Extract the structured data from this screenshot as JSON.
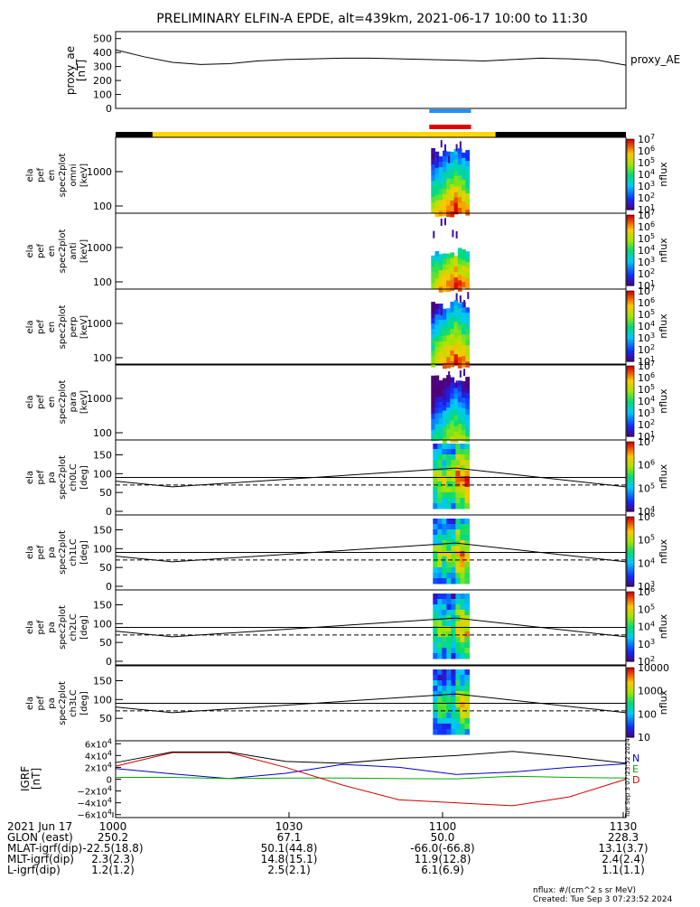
{
  "title": "PRELIMINARY ELFIN-A EPDE, alt=439km, 2021-06-17 10:00 to 11:30",
  "colors": {
    "sun_bar": "#ffd700",
    "shadow_bar": "#000000",
    "sci_bar_blue": "#1e90ff",
    "sci_bar_red": "#e00000",
    "igrf_N": "#0000c8",
    "igrf_E": "#00aa00",
    "igrf_D": "#d00000",
    "igrf_total": "#000000"
  },
  "ae_panel": {
    "ylabel": [
      "proxy_ae",
      "[nT]"
    ],
    "yticks": [
      "500",
      "400",
      "300",
      "200",
      "100",
      "0"
    ],
    "legend": "proxy_AE"
  },
  "spec_panels": [
    {
      "ylabel": [
        "ela",
        "pef",
        "en",
        "spec2plot",
        "omni",
        "[keV]"
      ],
      "yticks": [
        "1000",
        "100"
      ],
      "cbar_ticks": [
        "10^7",
        "10^6",
        "10^5",
        "10^4",
        "10^3",
        "10^2",
        "10^1"
      ],
      "zlabel": "nflux"
    },
    {
      "ylabel": [
        "ela",
        "pef",
        "en",
        "spec2plot",
        "anti",
        "[keV]"
      ],
      "yticks": [
        "1000",
        "100"
      ],
      "cbar_ticks": [
        "10^7",
        "10^6",
        "10^5",
        "10^4",
        "10^3",
        "10^2",
        "10^1"
      ],
      "zlabel": "nflux"
    },
    {
      "ylabel": [
        "ela",
        "pef",
        "en",
        "spec2plot",
        "perp",
        "[keV]"
      ],
      "yticks": [
        "1000",
        "100"
      ],
      "cbar_ticks": [
        "10^7",
        "10^6",
        "10^5",
        "10^4",
        "10^3",
        "10^2",
        "10^1"
      ],
      "zlabel": "nflux"
    },
    {
      "ylabel": [
        "ela",
        "pef",
        "en",
        "spec2plot",
        "para",
        "[keV]"
      ],
      "yticks": [
        "1000",
        "100"
      ],
      "cbar_ticks": [
        "10^7",
        "10^6",
        "10^5",
        "10^4",
        "10^3",
        "10^2",
        "10^1"
      ],
      "zlabel": "nflux"
    }
  ],
  "pa_panels": [
    {
      "ylabel": [
        "ela",
        "pef",
        "pa",
        "spec2plot",
        "ch0LC",
        "[deg]"
      ],
      "yticks": [
        "150",
        "100",
        "50",
        "0"
      ],
      "cbar_ticks": [
        "10^7",
        "10^6",
        "10^5",
        "10^4"
      ],
      "zlabel": "nflux"
    },
    {
      "ylabel": [
        "ela",
        "pef",
        "pa",
        "spec2plot",
        "ch1LC",
        "[deg]"
      ],
      "yticks": [
        "150",
        "100",
        "50",
        "0"
      ],
      "cbar_ticks": [
        "10^6",
        "10^5",
        "10^4",
        "10^3"
      ],
      "zlabel": "nflux"
    },
    {
      "ylabel": [
        "ela",
        "pef",
        "pa",
        "spec2plot",
        "ch2LC",
        "[deg]"
      ],
      "yticks": [
        "150",
        "100",
        "50",
        "0"
      ],
      "cbar_ticks": [
        "10^6",
        "10^5",
        "10^4",
        "10^3",
        "10^2"
      ],
      "zlabel": "nflux"
    },
    {
      "ylabel": [
        "ela",
        "pef",
        "pa",
        "spec2plot",
        "ch3LC",
        "[deg]"
      ],
      "yticks": [
        "150",
        "100",
        "50"
      ],
      "cbar_ticks": [
        "10000",
        "1000",
        "100",
        "10"
      ],
      "zlabel": "nflux"
    }
  ],
  "igrf_panel": {
    "ylabel": [
      "IGRF",
      "[nT]"
    ],
    "yticks": [
      "6x10^4",
      "4x10^4",
      "2x10^4",
      "0",
      "−2x10^4",
      "−4x10^4",
      "−6x10^4"
    ],
    "legend": [
      "N",
      "E",
      "D"
    ],
    "side_text": "Tue Sep  3 07:23:52 2024"
  },
  "footer": {
    "row_labels": [
      "2021 Jun 17",
      "GLON (east)",
      "MLAT-igrf(dip)",
      "MLT-igrf(dip)",
      "L-igrf(dip)"
    ],
    "columns": [
      {
        "time": "1000",
        "values": [
          "250.2",
          "-22.5(18.8)",
          "2.3(2.3)",
          "1.2(1.2)"
        ]
      },
      {
        "time": "1030",
        "values": [
          "67.1",
          "50.1(44.8)",
          "14.8(15.1)",
          "2.5(2.1)"
        ]
      },
      {
        "time": "1100",
        "values": [
          "50.0",
          "-66.0(-66.8)",
          "11.9(12.8)",
          "6.1(6.9)"
        ]
      },
      {
        "time": "1130",
        "values": [
          "228.3",
          "13.1(3.7)",
          "2.4(2.4)",
          "1.1(1.1)"
        ]
      }
    ],
    "units_note": "nflux: #/(cm^2 s sr MeV)",
    "created": "Created: Tue Sep  3 07:23:52 2024"
  },
  "chart_data": {
    "type": "line",
    "x_range": [
      "10:00",
      "11:30"
    ],
    "ae_series": {
      "name": "proxy_AE",
      "t_min": [
        0,
        5,
        10,
        15,
        20,
        25,
        30,
        35,
        40,
        45,
        50,
        55,
        60,
        65,
        70,
        75,
        80,
        85,
        90
      ],
      "values": [
        420,
        370,
        330,
        315,
        320,
        340,
        350,
        355,
        360,
        360,
        355,
        350,
        345,
        340,
        350,
        360,
        355,
        345,
        310
      ],
      "ylim": [
        0,
        550
      ]
    },
    "pitch_angle_lines": {
      "t_min": [
        0,
        10,
        60,
        90
      ],
      "solid_upper": [
        90,
        90,
        90,
        90
      ],
      "dashed": [
        70,
        70,
        70,
        70
      ],
      "varying": [
        80,
        65,
        115,
        65
      ],
      "ylim": [
        0,
        180
      ]
    },
    "igrf_series": [
      {
        "name": "N",
        "t_min": [
          0,
          10,
          20,
          30,
          40,
          50,
          60,
          70,
          80,
          90
        ],
        "values": [
          18000,
          9000,
          1000,
          10000,
          25000,
          20000,
          8000,
          12000,
          20000,
          26000
        ]
      },
      {
        "name": "E",
        "t_min": [
          0,
          10,
          20,
          30,
          40,
          50,
          60,
          70,
          80,
          90
        ],
        "values": [
          3000,
          3000,
          1000,
          2000,
          2000,
          1000,
          500,
          5000,
          3000,
          2000
        ]
      },
      {
        "name": "D",
        "t_min": [
          0,
          10,
          20,
          30,
          40,
          50,
          60,
          70,
          80,
          90
        ],
        "values": [
          22000,
          45000,
          45000,
          20000,
          -10000,
          -35000,
          -40000,
          -45000,
          -30000,
          0
        ]
      },
      {
        "name": "total",
        "t_min": [
          0,
          10,
          20,
          30,
          40,
          50,
          60,
          70,
          80,
          90
        ],
        "values": [
          28000,
          46000,
          46000,
          30000,
          27000,
          35000,
          40000,
          47000,
          38000,
          27000
        ]
      }
    ],
    "ylim_igrf": [
      -65000,
      65000
    ],
    "science_zone_t_min": [
      55,
      63
    ]
  }
}
